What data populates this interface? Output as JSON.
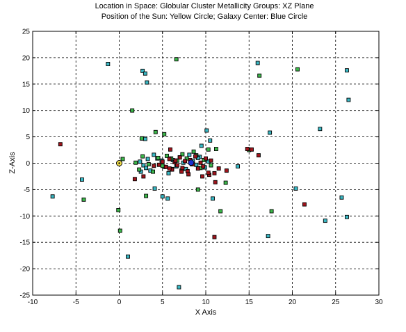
{
  "chart_data": {
    "type": "scatter",
    "title": [
      "Location in Space: Globular Cluster Metallicity Groups: XZ Plane",
      "Position of the Sun: Yellow Circle; Galaxy Center: Blue Circle"
    ],
    "xlabel": "X Axis",
    "ylabel": "Z-Axis",
    "xlim": [
      -10,
      30
    ],
    "ylim": [
      -25,
      25
    ],
    "xticks": [
      -10,
      -5,
      0,
      5,
      10,
      15,
      20,
      25,
      30
    ],
    "yticks": [
      -25,
      -20,
      -15,
      -10,
      -5,
      0,
      5,
      10,
      15,
      20,
      25
    ],
    "grid": true,
    "grid_style": "dashed",
    "colors": {
      "cyan_group": "#39b8c4",
      "green_group": "#3cb84a",
      "red_group": "#a0141c",
      "sun": "#f5e14a",
      "galaxy_center": "#1a2fd0",
      "marker_edge": "#000000"
    },
    "sun": {
      "x": 0.0,
      "y": 0.0
    },
    "galaxy_center": {
      "x": 8.3,
      "y": 0.1
    },
    "series": [
      {
        "color": "cyan_group",
        "x": [
          -1.3,
          2.7,
          3.0,
          3.2,
          16.0,
          26.3,
          26.5,
          23.2,
          17.4,
          10.1,
          2.7,
          3.0,
          9.5,
          10.5,
          13.7,
          20.4,
          25.7,
          26.3,
          23.8,
          17.2,
          10.8,
          6.9,
          1.0,
          -4.3,
          -7.7,
          5.0,
          4.0,
          3.3,
          2.8,
          2.5,
          2.4,
          3.1,
          3.6,
          4.4,
          4.9,
          5.2,
          5.7,
          6.2,
          6.6,
          7.0,
          7.4,
          7.7,
          8.1,
          8.5,
          8.9,
          9.3,
          9.9,
          10.3,
          4.1,
          5.6,
          9.1
        ],
        "y": [
          18.8,
          17.5,
          17.0,
          15.3,
          19.0,
          17.6,
          12.0,
          6.5,
          5.8,
          6.2,
          4.7,
          4.6,
          3.3,
          4.3,
          -0.6,
          -4.8,
          -6.5,
          -10.2,
          -10.9,
          -13.8,
          -6.7,
          -23.5,
          -17.7,
          -3.1,
          -6.3,
          -6.3,
          1.6,
          0.8,
          -0.4,
          -1.6,
          0.3,
          -0.9,
          -1.4,
          0.9,
          0.5,
          -0.7,
          -1.9,
          0.6,
          -0.6,
          1.1,
          0.1,
          -1.1,
          1.6,
          0.4,
          -0.3,
          1.2,
          -0.8,
          0.3,
          -4.8,
          -6.7,
          1.0
        ]
      },
      {
        "color": "green_group",
        "x": [
          6.6,
          20.6,
          16.2,
          1.5,
          2.6,
          4.2,
          5.2,
          10.3,
          11.2,
          15.0,
          17.6,
          11.7,
          9.1,
          3.1,
          0.1,
          -0.1,
          -4.1,
          0.4,
          1.9,
          2.3,
          2.7,
          3.4,
          3.9,
          4.5,
          5.0,
          5.5,
          6.1,
          6.7,
          7.2,
          7.8,
          8.4,
          8.9,
          9.4,
          9.8,
          10.6,
          12.3,
          6.0,
          7.3,
          8.6
        ],
        "y": [
          19.7,
          17.8,
          16.6,
          10.0,
          4.7,
          5.9,
          5.5,
          2.6,
          2.7,
          2.5,
          -9.1,
          -9.1,
          -5.0,
          -6.2,
          -12.8,
          -8.9,
          -6.9,
          0.8,
          0.1,
          -1.2,
          1.3,
          -0.2,
          -1.6,
          1.0,
          -0.5,
          1.4,
          -1.1,
          0.5,
          -1.4,
          0.9,
          -0.2,
          1.5,
          -0.9,
          0.6,
          -0.4,
          -3.7,
          0.9,
          1.7,
          2.2
        ]
      },
      {
        "color": "red_group",
        "x": [
          -6.8,
          14.8,
          15.3,
          16.1,
          5.9,
          1.8,
          2.8,
          11.0,
          21.4,
          11.1,
          10.4,
          4.6,
          5.0,
          5.4,
          5.8,
          6.1,
          6.4,
          6.7,
          7.0,
          7.3,
          7.6,
          7.9,
          8.2,
          8.5,
          8.8,
          9.1,
          9.4,
          9.7,
          10.0,
          10.3,
          10.6,
          11.5,
          12.4,
          8.0,
          7.2,
          6.5,
          9.6,
          11.0,
          4.0,
          5.8
        ],
        "y": [
          3.6,
          2.7,
          2.6,
          1.5,
          2.6,
          -3.0,
          -2.5,
          -14.0,
          -7.8,
          -3.6,
          -2.2,
          -0.3,
          0.3,
          -0.7,
          0.8,
          -1.2,
          0.2,
          -0.4,
          1.1,
          -0.9,
          0.4,
          -1.5,
          0.6,
          -0.2,
          1.3,
          -1.0,
          0.1,
          -0.6,
          0.9,
          -1.8,
          0.5,
          -1.0,
          -1.4,
          -2.1,
          -1.6,
          0.5,
          -2.5,
          -1.9,
          -0.5,
          -1.0
        ]
      }
    ]
  }
}
